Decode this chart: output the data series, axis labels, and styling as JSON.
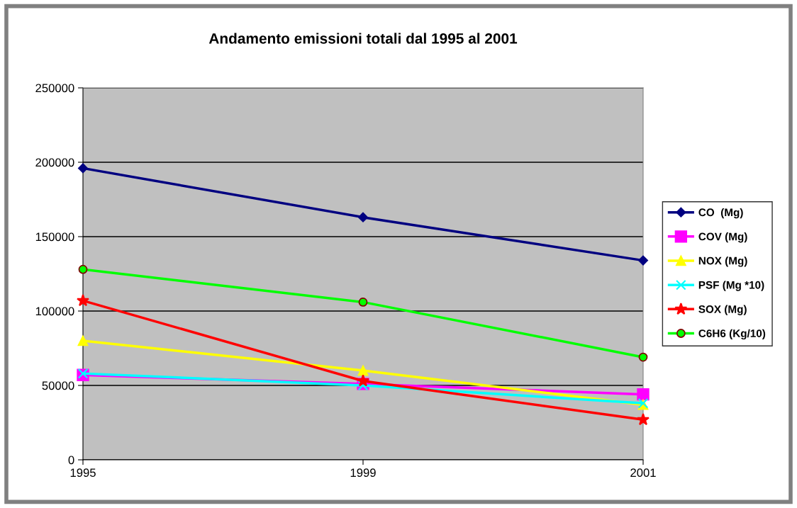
{
  "chart_data": {
    "type": "line",
    "title": "Andamento emissioni totali dal 1995 al 2001",
    "categories": [
      "1995",
      "1999",
      "2001"
    ],
    "ylim": [
      0,
      250000
    ],
    "yticks": [
      0,
      50000,
      100000,
      150000,
      200000,
      250000
    ],
    "grid": "y",
    "legend": "right",
    "series": [
      {
        "name": "CO  (Mg)",
        "color": "#000080",
        "marker": "diamond",
        "values": [
          196000,
          163000,
          134000
        ]
      },
      {
        "name": "COV (Mg)",
        "color": "#ff00ff",
        "marker": "square",
        "values": [
          57000,
          51000,
          44000
        ]
      },
      {
        "name": "NOX (Mg)",
        "color": "#ffff00",
        "marker": "triangle",
        "values": [
          80000,
          60000,
          37000
        ]
      },
      {
        "name": "PSF (Mg *10)",
        "color": "#00ffff",
        "marker": "cross",
        "values": [
          58000,
          50000,
          38000
        ]
      },
      {
        "name": "SOX (Mg)",
        "color": "#ff0000",
        "marker": "star",
        "values": [
          107000,
          53000,
          27000
        ]
      },
      {
        "name": "C6H6 (Kg/10)",
        "color": "#00ff00",
        "marker": "circle",
        "values": [
          128000,
          106000,
          69000
        ]
      }
    ]
  }
}
